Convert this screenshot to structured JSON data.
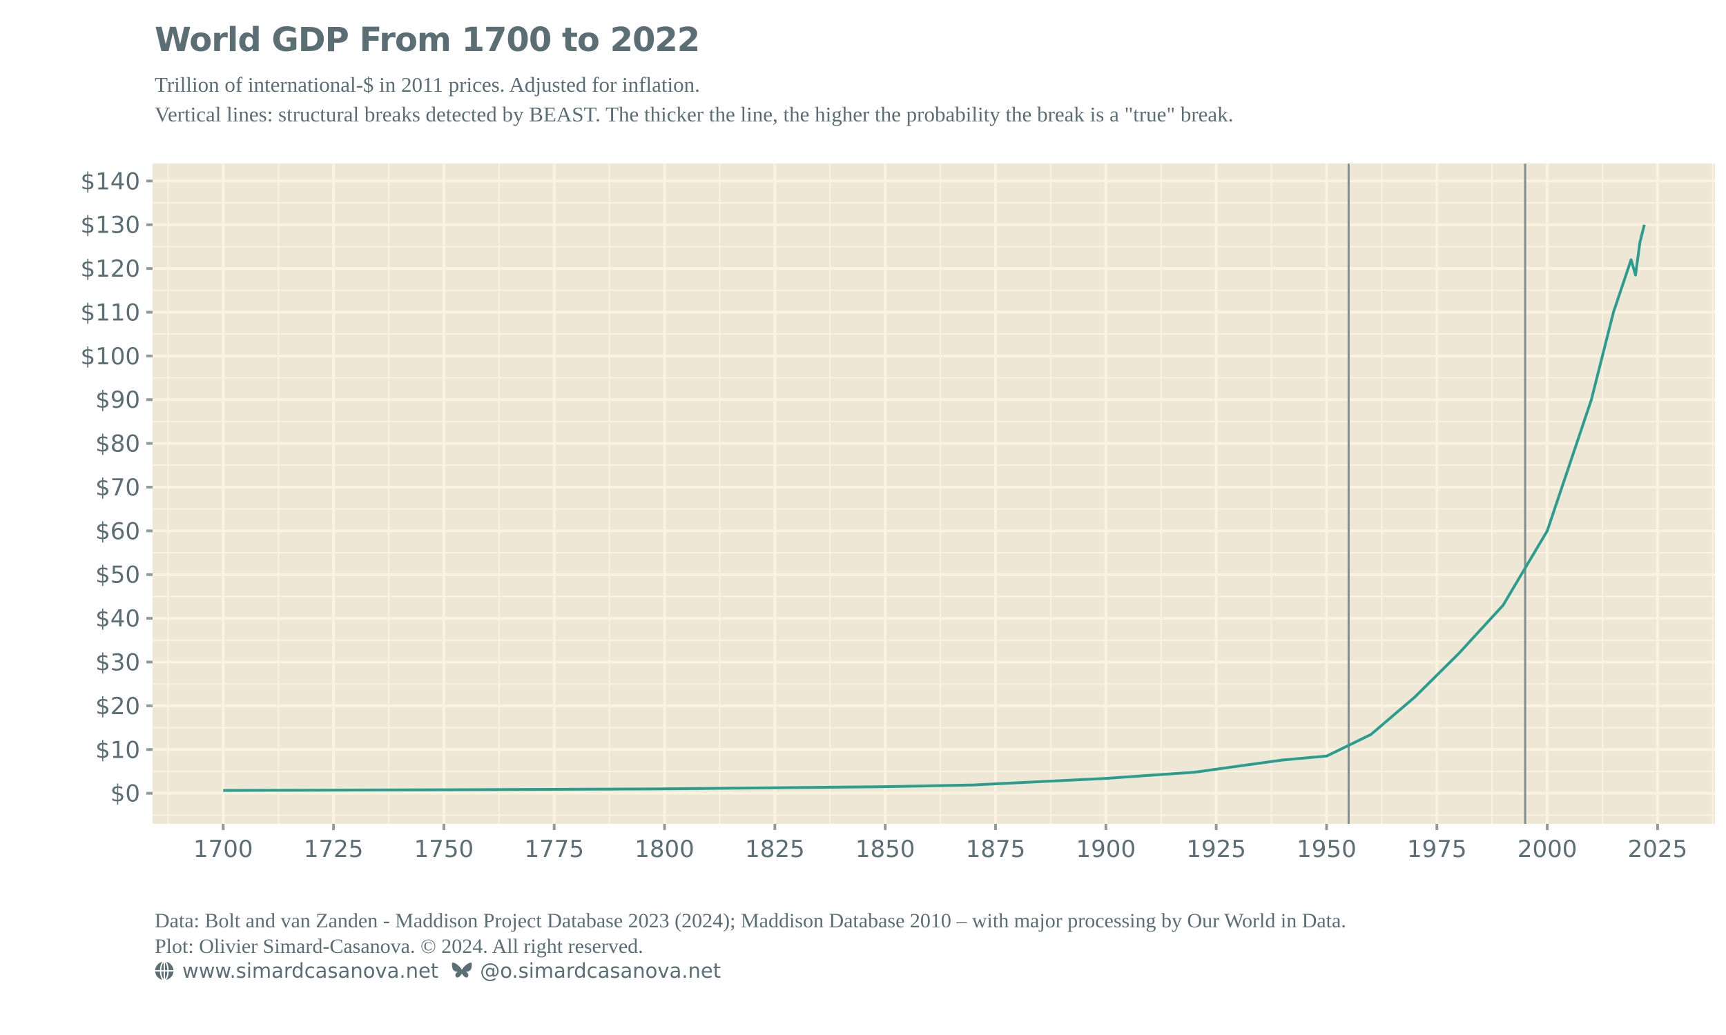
{
  "title": "World GDP From 1700 to 2022",
  "subtitle": [
    "Trillion of international-$ in 2011 prices. Adjusted for inflation.",
    "Vertical lines: structural breaks detected by BEAST. The thicker the line, the higher the probability the break is a \"true\" break."
  ],
  "caption": [
    "Data: Bolt and van Zanden - Maddison Project Database 2023 (2024); Maddison Database 2010 – with major processing by Our World in Data.",
    "Plot: Olivier Simard-Casanova. © 2024.  All right reserved."
  ],
  "links": {
    "website": "www.simardcasanova.net",
    "website_icon": "globe-icon",
    "bluesky": "@o.simardcasanova.net",
    "bluesky_icon": "butterfly-icon"
  },
  "colors": {
    "line": "#2A9D8F",
    "breaks": "#808F90",
    "panel": "#EEE7D5",
    "grid": "#FBF3E0",
    "text": "#5A6E73"
  },
  "chart_data": {
    "type": "line",
    "title": "World GDP From 1700 to 2022",
    "xlabel": "",
    "ylabel": "",
    "xlim": [
      1684,
      2038
    ],
    "ylim": [
      -7,
      144
    ],
    "grid": true,
    "x_ticks": [
      1700,
      1725,
      1750,
      1775,
      1800,
      1825,
      1850,
      1875,
      1900,
      1925,
      1950,
      1975,
      2000,
      2025
    ],
    "y_ticks": [
      0,
      10,
      20,
      30,
      40,
      50,
      60,
      70,
      80,
      90,
      100,
      110,
      120,
      130,
      140
    ],
    "y_tick_labels": [
      "$0",
      "$10",
      "$20",
      "$30",
      "$40",
      "$50",
      "$60",
      "$70",
      "$80",
      "$90",
      "$100",
      "$110",
      "$120",
      "$130",
      "$140"
    ],
    "series": [
      {
        "x": [
          1700,
          1720,
          1750,
          1800,
          1820,
          1850,
          1870,
          1900,
          1920,
          1940,
          1950,
          1960,
          1970,
          1980,
          1990,
          2000,
          2010,
          2015,
          2017,
          2019,
          2020,
          2021,
          2022
        ],
        "y": [
          0.64,
          0.7,
          0.8,
          1.0,
          1.2,
          1.5,
          1.9,
          3.4,
          4.8,
          7.6,
          8.5,
          13.4,
          22,
          32,
          43,
          60,
          90,
          110,
          116,
          122,
          118.5,
          126,
          130
        ]
      }
    ],
    "structural_breaks": [
      1955,
      1995
    ]
  }
}
